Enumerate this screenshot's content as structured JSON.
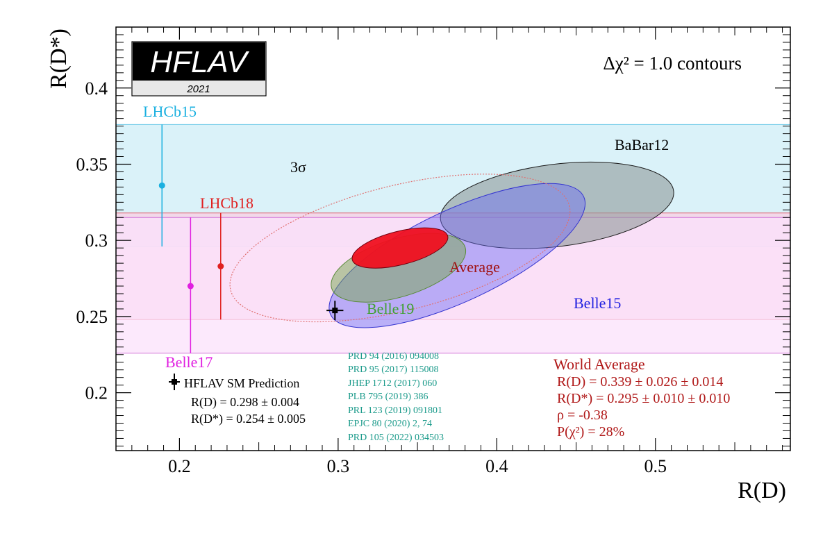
{
  "chart_data": {
    "type": "scatter",
    "xlabel": "R(D)",
    "ylabel": "R(D*)",
    "xlim": [
      0.16,
      0.585
    ],
    "ylim": [
      0.162,
      0.44
    ],
    "x_ticks": [
      0.2,
      0.3,
      0.4,
      0.5
    ],
    "x_tick_labels": [
      "0.2",
      "0.3",
      "0.4",
      "0.5"
    ],
    "y_ticks": [
      0.2,
      0.25,
      0.3,
      0.35,
      0.4
    ],
    "y_tick_labels": [
      "0.2",
      "0.25",
      "0.3",
      "0.35",
      "0.4"
    ],
    "contour_label": "Δχ² = 1.0 contours",
    "logo": {
      "text": "HFLAV",
      "year": "2021"
    },
    "bands": [
      {
        "name": "LHCb15",
        "y_low": 0.296,
        "y_high": 0.376,
        "color": "#cdeef7",
        "edge": "#66c6e6"
      },
      {
        "name": "LHCb18",
        "y_low": 0.248,
        "y_high": 0.318,
        "color": "#f9cfe3",
        "edge": "#e06070"
      },
      {
        "name": "Belle17",
        "y_low": 0.226,
        "y_high": 0.315,
        "color": "#fbe2fb",
        "edge": "#d070d8"
      }
    ],
    "points": [
      {
        "name": "LHCb15",
        "x": 0.189,
        "y": 0.336,
        "y_low": 0.296,
        "y_high": 0.376,
        "color": "#1ab0e0"
      },
      {
        "name": "LHCb18",
        "x": 0.226,
        "y": 0.283,
        "y_low": 0.248,
        "y_high": 0.318,
        "color": "#e02020"
      },
      {
        "name": "Belle17",
        "x": 0.207,
        "y": 0.27,
        "y_low": 0.226,
        "y_high": 0.315,
        "color": "#e020e0"
      }
    ],
    "ellipses": [
      {
        "name": "BaBar12",
        "cx": 0.438,
        "cy": 0.323,
        "rx": 0.074,
        "ry": 0.027,
        "angle_deg": -7,
        "fill": "#8f9a9a",
        "fill_opacity": 0.6,
        "stroke": "#1a1a1a"
      },
      {
        "name": "Belle15",
        "cx": 0.375,
        "cy": 0.29,
        "rx": 0.088,
        "ry": 0.03,
        "angle_deg": -25,
        "fill": "#6a6af5",
        "fill_opacity": 0.45,
        "stroke": "#3434d0"
      },
      {
        "name": "Belle19",
        "cx": 0.338,
        "cy": 0.282,
        "rx": 0.044,
        "ry": 0.019,
        "angle_deg": -17,
        "fill": "#78a852",
        "fill_opacity": 0.5,
        "stroke": "#5a8a3a"
      },
      {
        "name": "Average",
        "cx": 0.339,
        "cy": 0.295,
        "rx": 0.031,
        "ry": 0.011,
        "angle_deg": -14,
        "fill": "#f01020",
        "fill_opacity": 0.95,
        "stroke": "#700010"
      },
      {
        "name": "3σ",
        "cx": 0.339,
        "cy": 0.295,
        "rx": 0.11,
        "ry": 0.041,
        "angle_deg": -14,
        "fill": "none",
        "fill_opacity": 0,
        "stroke": "#e07070",
        "dashed": true
      }
    ],
    "sm_prediction": {
      "x": 0.298,
      "x_err": 0.004,
      "y": 0.254,
      "y_err": 0.005,
      "color": "#000000"
    },
    "labels": [
      {
        "text": "LHCb15",
        "color": "#1ab0e0"
      },
      {
        "text": "LHCb18",
        "color": "#e02020"
      },
      {
        "text": "Belle17",
        "color": "#e020e0"
      },
      {
        "text": "BaBar12",
        "color": "#000000"
      },
      {
        "text": "Belle15",
        "color": "#2020e0"
      },
      {
        "text": "Belle19",
        "color": "#40a030"
      },
      {
        "text": "Average",
        "color": "#a01010"
      },
      {
        "text": "3σ",
        "color": "#000000"
      }
    ],
    "sm_legend": {
      "title": "HFLAV SM Prediction",
      "lines": [
        "R(D) = 0.298 ± 0.004",
        "R(D*) = 0.254 ± 0.005"
      ]
    },
    "references": [
      "PRD 94 (2016) 094008",
      "PRD 95 (2017) 115008",
      "JHEP 1712 (2017) 060",
      "PLB 795 (2019) 386",
      "PRL 123 (2019) 091801",
      "EPJC 80 (2020) 2, 74",
      "PRD 105 (2022) 034503"
    ],
    "references_color": "#1a9a8a",
    "world_average": {
      "title": "World Average",
      "lines": [
        "R(D) = 0.339 ± 0.026 ± 0.014",
        "R(D*) = 0.295 ± 0.010 ± 0.010",
        "ρ = -0.38",
        "P(χ²) = 28%"
      ],
      "color": "#b01818"
    }
  }
}
